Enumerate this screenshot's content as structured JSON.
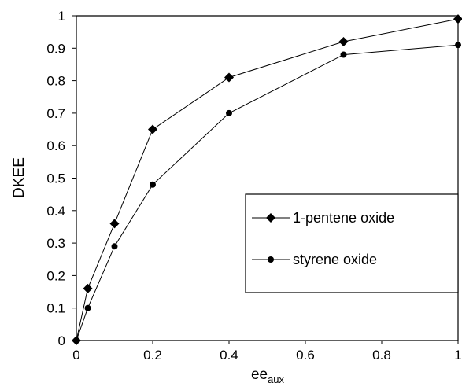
{
  "chart_data": {
    "type": "line",
    "title": "",
    "xlabel_main": "ee",
    "xlabel_sub": "aux",
    "ylabel": "DKEE",
    "xlim": [
      0,
      1
    ],
    "ylim": [
      0,
      1
    ],
    "x_ticks": [
      "0",
      "0.2",
      "0.4",
      "0.6",
      "0.8",
      "1"
    ],
    "y_ticks": [
      "0",
      "0.1",
      "0.2",
      "0.3",
      "0.4",
      "0.5",
      "0.6",
      "0.7",
      "0.8",
      "0.9",
      "1"
    ],
    "grid": false,
    "legend_position": "center-right",
    "series": [
      {
        "name": "1-pentene oxide",
        "marker": "diamond",
        "color": "#000000",
        "x": [
          0,
          0.03,
          0.1,
          0.2,
          0.4,
          0.7,
          1.0
        ],
        "y": [
          0,
          0.16,
          0.36,
          0.65,
          0.81,
          0.92,
          0.99
        ]
      },
      {
        "name": "styrene oxide",
        "marker": "circle",
        "color": "#000000",
        "x": [
          0,
          0.03,
          0.1,
          0.2,
          0.4,
          0.7,
          1.0
        ],
        "y": [
          0,
          0.1,
          0.29,
          0.48,
          0.7,
          0.88,
          0.91
        ]
      }
    ]
  }
}
